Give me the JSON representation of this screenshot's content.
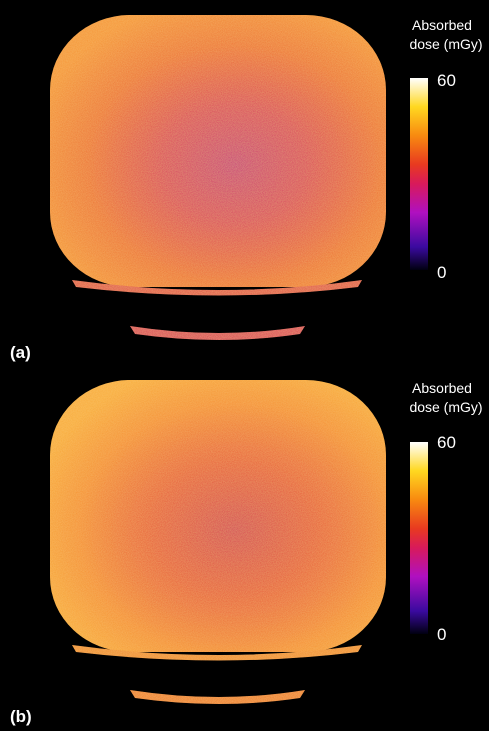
{
  "panels": [
    {
      "label": "(a)",
      "colorbar": {
        "title": [
          "Absorbed",
          "dose (mGy)"
        ],
        "max": 60,
        "min": 0
      }
    },
    {
      "label": "(b)",
      "colorbar": {
        "title": [
          "Absorbed",
          "dose (mGy)"
        ],
        "max": 60,
        "min": 0
      }
    }
  ]
}
